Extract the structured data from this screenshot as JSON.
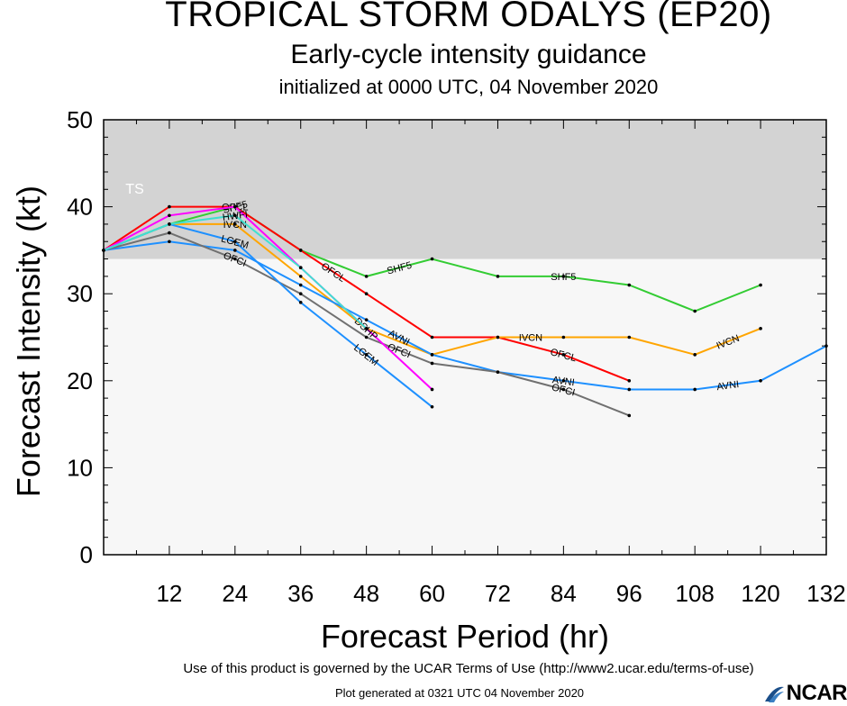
{
  "chart_data": {
    "type": "line",
    "title": "TROPICAL STORM ODALYS (EP20)",
    "subtitle": "Early-cycle intensity guidance",
    "subtitle2": "initialized at 0000 UTC, 04 November 2020",
    "xlabel": "Forecast Period (hr)",
    "ylabel": "Forecast Intensity (kt)",
    "xlim": [
      0,
      132
    ],
    "ylim": [
      0,
      50
    ],
    "xticks": [
      12,
      24,
      36,
      48,
      60,
      72,
      84,
      96,
      108,
      120,
      132
    ],
    "yticks": [
      0,
      10,
      20,
      30,
      40,
      50
    ],
    "band": {
      "label": "TS",
      "from": 34,
      "to": 50,
      "color": "#d3d3d3"
    },
    "below_band_color": "#f7f7f7",
    "series": [
      {
        "name": "SHF5",
        "color": "#33cc33",
        "points": [
          [
            0,
            35
          ],
          [
            12,
            38
          ],
          [
            24,
            40
          ],
          [
            36,
            35
          ],
          [
            48,
            32
          ],
          [
            60,
            34
          ],
          [
            72,
            32
          ],
          [
            84,
            32
          ],
          [
            96,
            31
          ],
          [
            108,
            28
          ],
          [
            120,
            31
          ]
        ],
        "labels": [
          [
            24,
            "SHF5"
          ],
          [
            54,
            "SHF5"
          ],
          [
            84,
            "SHF5"
          ]
        ]
      },
      {
        "name": "OFCL",
        "color": "#ff0000",
        "points": [
          [
            0,
            35
          ],
          [
            12,
            40
          ],
          [
            24,
            40
          ],
          [
            36,
            35
          ],
          [
            48,
            30
          ],
          [
            60,
            25
          ],
          [
            72,
            25
          ],
          [
            84,
            23
          ],
          [
            96,
            20
          ]
        ],
        "labels": [
          [
            24,
            "OFCL"
          ],
          [
            42,
            "OFCL"
          ],
          [
            84,
            "OFCL"
          ]
        ]
      },
      {
        "name": "IVCN",
        "color": "#ffa500",
        "points": [
          [
            0,
            35
          ],
          [
            12,
            38
          ],
          [
            24,
            38
          ],
          [
            36,
            32
          ],
          [
            48,
            26
          ],
          [
            60,
            23
          ],
          [
            72,
            25
          ],
          [
            84,
            25
          ],
          [
            96,
            25
          ],
          [
            108,
            23
          ],
          [
            120,
            26
          ]
        ],
        "labels": [
          [
            24,
            "IVCN"
          ],
          [
            78,
            "IVCN"
          ],
          [
            114,
            "IVCN"
          ]
        ]
      },
      {
        "name": "AVNI",
        "color": "#1e90ff",
        "points": [
          [
            0,
            35
          ],
          [
            12,
            36
          ],
          [
            24,
            35
          ],
          [
            36,
            31
          ],
          [
            48,
            27
          ],
          [
            60,
            23
          ],
          [
            72,
            21
          ],
          [
            84,
            20
          ],
          [
            96,
            19
          ],
          [
            108,
            19
          ],
          [
            120,
            20
          ],
          [
            132,
            24
          ]
        ],
        "labels": [
          [
            54,
            "AVNI"
          ],
          [
            84,
            "AVNI"
          ],
          [
            114,
            "AVNI"
          ]
        ]
      },
      {
        "name": "OFCI",
        "color": "#707070",
        "points": [
          [
            0,
            35
          ],
          [
            12,
            37
          ],
          [
            24,
            34
          ],
          [
            36,
            30
          ],
          [
            48,
            25
          ],
          [
            60,
            22
          ],
          [
            72,
            21
          ],
          [
            84,
            19
          ],
          [
            96,
            16
          ]
        ],
        "labels": [
          [
            24,
            "OFCI"
          ],
          [
            54,
            "OFCI"
          ],
          [
            84,
            "OFCI"
          ]
        ]
      },
      {
        "name": "LGEM",
        "color": "#1e90ff",
        "points": [
          [
            0,
            35
          ],
          [
            12,
            38
          ],
          [
            24,
            36
          ],
          [
            36,
            29
          ],
          [
            48,
            23
          ],
          [
            60,
            17
          ]
        ],
        "labels": [
          [
            24,
            "LGEM"
          ],
          [
            48,
            "LGEM"
          ]
        ]
      },
      {
        "name": "DSHP",
        "color": "#ff00ff",
        "points": [
          [
            0,
            35
          ],
          [
            12,
            39
          ],
          [
            24,
            40
          ],
          [
            36,
            33
          ],
          [
            48,
            26
          ],
          [
            60,
            19
          ]
        ],
        "labels": [
          [
            48,
            "DSHP"
          ]
        ]
      },
      {
        "name": "HWFI",
        "color": "#40e0d0",
        "points": [
          [
            0,
            35
          ],
          [
            12,
            38
          ],
          [
            24,
            39
          ],
          [
            36,
            33
          ],
          [
            48,
            26
          ]
        ],
        "labels": [
          [
            24,
            "HWFI"
          ]
        ]
      }
    ]
  },
  "footer": {
    "terms": "Use of this product is governed by the UCAR Terms of Use (http://www2.ucar.edu/terms-of-use)",
    "generated": "Plot generated at 0321 UTC   04 November 2020",
    "logo": "NCAR"
  }
}
